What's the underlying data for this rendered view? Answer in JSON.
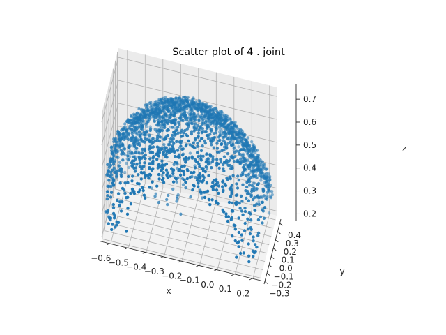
{
  "chart_data": {
    "type": "scatter",
    "projection": "3d",
    "title": "Scatter plot of 4 . joint",
    "xlabel": "x",
    "ylabel": "y",
    "zlabel": "z",
    "xlim": [
      -0.65,
      0.24
    ],
    "ylim": [
      -0.33,
      0.45
    ],
    "zlim": [
      0.18,
      0.74
    ],
    "xticks": [
      -0.6,
      -0.5,
      -0.4,
      -0.3,
      -0.2,
      -0.1,
      0.0,
      0.1,
      0.2
    ],
    "xtick_labels": [
      "−0.6",
      "−0.5",
      "−0.4",
      "−0.3",
      "−0.2",
      "−0.1",
      "0.0",
      "0.1",
      "0.2"
    ],
    "yticks": [
      -0.3,
      -0.2,
      -0.1,
      0.0,
      0.1,
      0.2,
      0.3,
      0.4
    ],
    "ytick_labels": [
      "−0.3",
      "−0.2",
      "−0.1",
      "0.0",
      "0.1",
      "0.2",
      "0.3",
      "0.4"
    ],
    "zticks": [
      0.2,
      0.3,
      0.4,
      0.5,
      0.6,
      0.7
    ],
    "ztick_labels": [
      "0.2",
      "0.3",
      "0.4",
      "0.5",
      "0.6",
      "0.7"
    ],
    "grid": true,
    "marker_color": "#1f77b4",
    "point_cloud": {
      "shape": "spherical shell (upper hemisphere)",
      "center": [
        -0.2,
        0.05,
        0.2
      ],
      "radius": 0.5,
      "z_range": [
        0.2,
        0.71
      ],
      "approx_points": 2600
    }
  }
}
